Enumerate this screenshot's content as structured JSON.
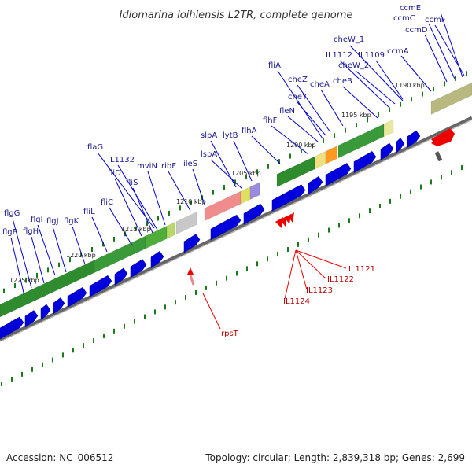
{
  "title": "Idiomarina loihiensis L2TR, complete genome",
  "footer": {
    "accession": "Accession: NC_006512",
    "summary": "Topology: circular; Length: 2,839,318 bp; Genes: 2,699"
  },
  "colors": {
    "cds_arrow": "#0000dd",
    "backbone": "#555555",
    "gene_label": "#1a1a8c",
    "red_feature": "#ee0000",
    "track_green": "#2e8b2e",
    "gc_tick": "#1a7a1a"
  },
  "kbp_ticks": [
    "1190 kbp",
    "1195 kbp",
    "1200 kbp",
    "1205 kbp",
    "1210 kbp",
    "1215 kbp",
    "1220 kbp",
    "1225 kbp"
  ],
  "gene_labels": [
    "ccmE",
    "ccmC",
    "ccmF",
    "ccmD",
    "cheW_1",
    "IL1112",
    "IL1109",
    "ccmA",
    "cheW_2",
    "fliA",
    "cheZ",
    "cheA",
    "cheB",
    "cheY",
    "fleN",
    "flhF",
    "flhA",
    "slpA",
    "lytB",
    "lspA",
    "flaG",
    "IL1132",
    "ileS",
    "ribF",
    "mviN",
    "fliD",
    "fliS",
    "fliC",
    "fliL",
    "flgG",
    "flgI",
    "flgJ",
    "flgK",
    "flgF",
    "flgH"
  ],
  "red_labels": [
    "IL1121",
    "IL1122",
    "IL1123",
    "IL1124",
    "rpsT"
  ]
}
